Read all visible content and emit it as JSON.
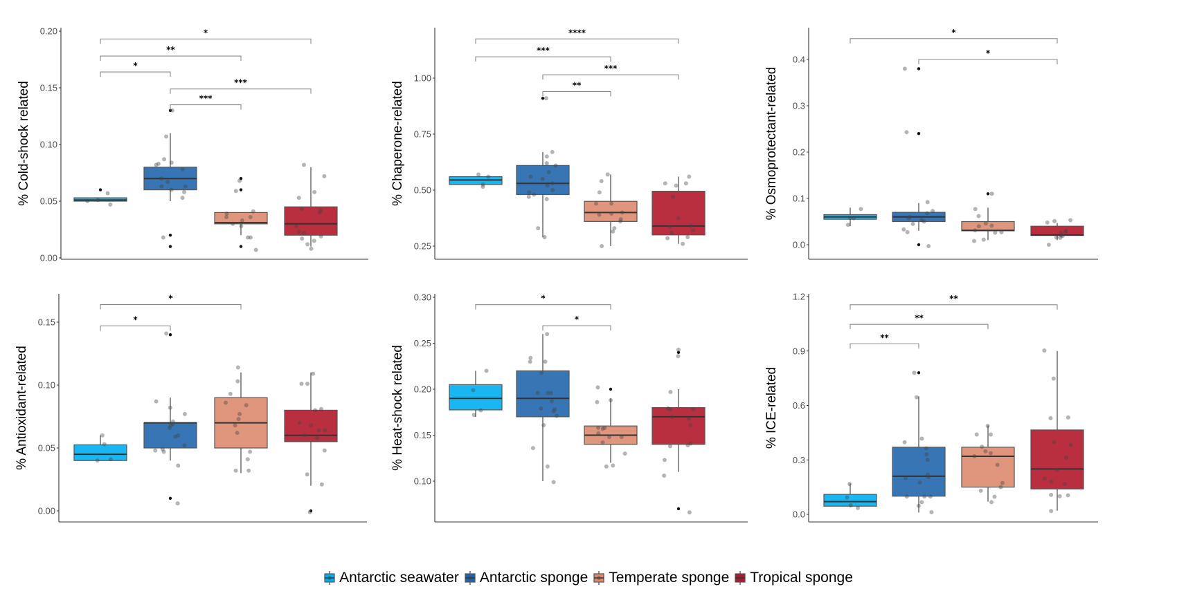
{
  "legend": {
    "items": [
      {
        "label": "Antarctic seawater",
        "color": "#00aeef"
      },
      {
        "label": "Antarctic sponge",
        "color": "#2166ac"
      },
      {
        "label": "Temperate sponge",
        "color": "#dd8a6f"
      },
      {
        "label": "Tropical sponge",
        "color": "#b2182b"
      }
    ]
  },
  "chart_data": [
    {
      "type": "box",
      "title": "",
      "ylabel": "% Cold-shock related",
      "ylim": [
        0.0,
        0.2
      ],
      "yticks": [
        0.0,
        0.05,
        0.1,
        0.15,
        0.2
      ],
      "ytick_labels": [
        "0.00",
        "0.05",
        "0.10",
        "0.15",
        "0.20"
      ],
      "categories": [
        "Antarctic seawater",
        "Antarctic sponge",
        "Temperate sponge",
        "Tropical sponge"
      ],
      "boxes": [
        {
          "q1": 0.05,
          "median": 0.051,
          "q3": 0.053,
          "whisker_low": 0.05,
          "whisker_high": 0.053,
          "points": [
            0.057,
            0.05,
            0.051,
            0.047
          ],
          "outliers": [
            0.06
          ]
        },
        {
          "q1": 0.06,
          "median": 0.07,
          "q3": 0.08,
          "whisker_low": 0.05,
          "whisker_high": 0.11,
          "points": [
            0.13,
            0.107,
            0.087,
            0.084,
            0.083,
            0.082,
            0.078,
            0.07,
            0.067,
            0.063,
            0.063,
            0.06,
            0.058,
            0.053,
            0.018
          ],
          "outliers": [
            0.13,
            0.02,
            0.01
          ]
        },
        {
          "q1": 0.03,
          "median": 0.031,
          "q3": 0.04,
          "whisker_low": 0.02,
          "whisker_high": 0.04,
          "points": [
            0.068,
            0.059,
            0.041,
            0.039,
            0.036,
            0.036,
            0.033,
            0.03,
            0.028,
            0.018,
            0.018,
            0.007
          ],
          "outliers": [
            0.07,
            0.06,
            0.01
          ]
        },
        {
          "q1": 0.02,
          "median": 0.03,
          "q3": 0.045,
          "whisker_low": 0.01,
          "whisker_high": 0.08,
          "points": [
            0.082,
            0.072,
            0.058,
            0.053,
            0.043,
            0.042,
            0.04,
            0.028,
            0.023,
            0.022,
            0.019,
            0.017,
            0.012,
            0.015,
            0.008
          ],
          "outliers": []
        }
      ],
      "comparisons": [
        {
          "from": 0,
          "to": 3,
          "label": "*",
          "y": 0.193
        },
        {
          "from": 0,
          "to": 2,
          "label": "**",
          "y": 0.178
        },
        {
          "from": 0,
          "to": 1,
          "label": "*",
          "y": 0.164
        },
        {
          "from": 1,
          "to": 3,
          "label": "***",
          "y": 0.149
        },
        {
          "from": 1,
          "to": 2,
          "label": "***",
          "y": 0.135
        }
      ]
    },
    {
      "type": "box",
      "ylabel": "% Chaperone-related",
      "ylim": [
        0.25,
        1.25
      ],
      "yticks": [
        0.25,
        0.5,
        0.75,
        1.0
      ],
      "ytick_labels": [
        "0.25",
        "0.50",
        "0.75",
        "1.00"
      ],
      "categories": [
        "Antarctic seawater",
        "Antarctic sponge",
        "Temperate sponge",
        "Tropical sponge"
      ],
      "boxes": [
        {
          "q1": 0.525,
          "median": 0.545,
          "q3": 0.56,
          "whisker_low": 0.525,
          "whisker_high": 0.56,
          "points": [
            0.57,
            0.56,
            0.525,
            0.515
          ],
          "outliers": []
        },
        {
          "q1": 0.48,
          "median": 0.53,
          "q3": 0.61,
          "whisker_low": 0.29,
          "whisker_high": 0.67,
          "points": [
            0.91,
            0.67,
            0.65,
            0.62,
            0.61,
            0.58,
            0.56,
            0.55,
            0.53,
            0.52,
            0.5,
            0.49,
            0.48,
            0.47,
            0.46,
            0.33,
            0.29
          ],
          "outliers": [
            0.91
          ]
        },
        {
          "q1": 0.36,
          "median": 0.4,
          "q3": 0.45,
          "whisker_low": 0.25,
          "whisker_high": 0.57,
          "points": [
            0.57,
            0.54,
            0.49,
            0.44,
            0.44,
            0.4,
            0.395,
            0.39,
            0.37,
            0.36,
            0.33,
            0.315,
            0.25
          ],
          "outliers": []
        },
        {
          "q1": 0.3,
          "median": 0.34,
          "q3": 0.495,
          "whisker_low": 0.26,
          "whisker_high": 0.56,
          "points": [
            0.56,
            0.53,
            0.53,
            0.52,
            0.47,
            0.375,
            0.34,
            0.335,
            0.32,
            0.31,
            0.29,
            0.285,
            0.26
          ],
          "outliers": []
        }
      ],
      "comparisons": [
        {
          "from": 0,
          "to": 3,
          "label": "****",
          "y": 1.175
        },
        {
          "from": 0,
          "to": 2,
          "label": "***",
          "y": 1.095
        },
        {
          "from": 1,
          "to": 3,
          "label": "***",
          "y": 1.015
        },
        {
          "from": 1,
          "to": 2,
          "label": "**",
          "y": 0.94
        }
      ]
    },
    {
      "type": "box",
      "ylabel": "% Osmoprotectant-related",
      "ylim": [
        0.0,
        0.46
      ],
      "yticks": [
        0.0,
        0.1,
        0.2,
        0.3,
        0.4
      ],
      "ytick_labels": [
        "0.0",
        "0.1",
        "0.2",
        "0.3",
        "0.4"
      ],
      "categories": [
        "Antarctic seawater",
        "Antarctic sponge",
        "Temperate sponge",
        "Tropical sponge"
      ],
      "boxes": [
        {
          "q1": 0.055,
          "median": 0.06,
          "q3": 0.065,
          "whisker_low": 0.04,
          "whisker_high": 0.08,
          "points": [
            0.077,
            0.058,
            0.057,
            0.043
          ],
          "outliers": []
        },
        {
          "q1": 0.05,
          "median": 0.06,
          "q3": 0.07,
          "whisker_low": 0.03,
          "whisker_high": 0.09,
          "points": [
            0.38,
            0.243,
            0.092,
            0.073,
            0.068,
            0.06,
            0.057,
            0.053,
            0.05,
            0.045,
            0.033,
            0.027,
            -0.003
          ],
          "outliers": [
            0.38,
            0.24,
            0.0
          ]
        },
        {
          "q1": 0.03,
          "median": 0.031,
          "q3": 0.05,
          "whisker_low": 0.01,
          "whisker_high": 0.08,
          "points": [
            0.11,
            0.077,
            0.062,
            0.046,
            0.041,
            0.04,
            0.031,
            0.027,
            0.026,
            0.011,
            0.008
          ],
          "outliers": [
            0.11
          ]
        },
        {
          "q1": 0.02,
          "median": 0.021,
          "q3": 0.04,
          "whisker_low": 0.01,
          "whisker_high": 0.047,
          "points": [
            0.053,
            0.051,
            0.048,
            0.03,
            0.028,
            0.026,
            0.02,
            0.019,
            0.016,
            0.015,
            0.0
          ],
          "outliers": []
        }
      ],
      "comparisons": [
        {
          "from": 0,
          "to": 3,
          "label": "*",
          "y": 0.445
        },
        {
          "from": 1,
          "to": 3,
          "label": "*",
          "y": 0.4
        }
      ]
    },
    {
      "type": "box",
      "ylabel": "% Antioxidant-related",
      "ylim": [
        -0.01,
        0.17
      ],
      "yticks": [
        0.0,
        0.05,
        0.1,
        0.15
      ],
      "ytick_labels": [
        "0.00",
        "0.05",
        "0.10",
        "0.15"
      ],
      "categories": [
        "Antarctic seawater",
        "Antarctic sponge",
        "Temperate sponge",
        "Tropical sponge"
      ],
      "boxes": [
        {
          "q1": 0.04,
          "median": 0.045,
          "q3": 0.0525,
          "whisker_low": 0.04,
          "whisker_high": 0.06,
          "points": [
            0.06,
            0.053,
            0.041,
            0.04
          ],
          "outliers": []
        },
        {
          "q1": 0.05,
          "median": 0.07,
          "q3": 0.07,
          "whisker_low": 0.04,
          "whisker_high": 0.09,
          "points": [
            0.141,
            0.087,
            0.082,
            0.077,
            0.071,
            0.069,
            0.068,
            0.066,
            0.06,
            0.059,
            0.052,
            0.049,
            0.048,
            0.047,
            0.036,
            0.006
          ],
          "outliers": [
            0.14,
            0.01
          ]
        },
        {
          "q1": 0.05,
          "median": 0.07,
          "q3": 0.09,
          "whisker_low": 0.03,
          "whisker_high": 0.11,
          "points": [
            0.114,
            0.103,
            0.093,
            0.086,
            0.084,
            0.077,
            0.073,
            0.068,
            0.062,
            0.047,
            0.041,
            0.032,
            0.032
          ],
          "outliers": []
        },
        {
          "q1": 0.055,
          "median": 0.06,
          "q3": 0.08,
          "whisker_low": 0.02,
          "whisker_high": 0.11,
          "points": [
            0.109,
            0.101,
            0.101,
            0.081,
            0.08,
            0.07,
            0.068,
            0.064,
            0.064,
            0.06,
            0.058,
            0.048,
            0.029,
            0.021,
            -0.001
          ],
          "outliers": [
            0.0
          ]
        }
      ],
      "comparisons": [
        {
          "from": 0,
          "to": 2,
          "label": "*",
          "y": 0.164
        },
        {
          "from": 0,
          "to": 1,
          "label": "*",
          "y": 0.147
        }
      ]
    },
    {
      "type": "box",
      "ylabel": "% Heat-shock related",
      "ylim": [
        0.055,
        0.3
      ],
      "yticks": [
        0.1,
        0.15,
        0.2,
        0.25,
        0.3
      ],
      "ytick_labels": [
        "0.10",
        "0.15",
        "0.20",
        "0.25",
        "0.30"
      ],
      "categories": [
        "Antarctic seawater",
        "Antarctic sponge",
        "Temperate sponge",
        "Tropical sponge"
      ],
      "boxes": [
        {
          "q1": 0.1775,
          "median": 0.19,
          "q3": 0.205,
          "whisker_low": 0.17,
          "whisker_high": 0.22,
          "points": [
            0.22,
            0.199,
            0.177,
            0.172
          ],
          "outliers": []
        },
        {
          "q1": 0.17,
          "median": 0.19,
          "q3": 0.22,
          "whisker_low": 0.1,
          "whisker_high": 0.26,
          "points": [
            0.26,
            0.234,
            0.23,
            0.23,
            0.218,
            0.196,
            0.196,
            0.196,
            0.187,
            0.179,
            0.178,
            0.176,
            0.171,
            0.161,
            0.136,
            0.116,
            0.099
          ],
          "outliers": []
        },
        {
          "q1": 0.14,
          "median": 0.15,
          "q3": 0.16,
          "whisker_low": 0.12,
          "whisker_high": 0.19,
          "points": [
            0.202,
            0.188,
            0.186,
            0.158,
            0.158,
            0.157,
            0.152,
            0.148,
            0.148,
            0.142,
            0.13,
            0.117,
            0.116
          ],
          "outliers": [
            0.2
          ]
        },
        {
          "q1": 0.14,
          "median": 0.17,
          "q3": 0.18,
          "whisker_low": 0.11,
          "whisker_high": 0.2,
          "points": [
            0.243,
            0.236,
            0.197,
            0.179,
            0.178,
            0.178,
            0.17,
            0.168,
            0.161,
            0.141,
            0.139,
            0.138,
            0.123,
            0.106,
            0.066
          ],
          "outliers": [
            0.24,
            0.07
          ]
        }
      ],
      "comparisons": [
        {
          "from": 0,
          "to": 2,
          "label": "*",
          "y": 0.292
        },
        {
          "from": 1,
          "to": 2,
          "label": "*",
          "y": 0.269
        }
      ]
    },
    {
      "type": "box",
      "ylabel": "% ICE-related",
      "ylim": [
        -0.05,
        1.2
      ],
      "yticks": [
        0.0,
        0.3,
        0.6,
        0.9,
        1.2
      ],
      "ytick_labels": [
        "0.0",
        "0.3",
        "0.6",
        "0.9",
        "1.2"
      ],
      "categories": [
        "Antarctic seawater",
        "Antarctic sponge",
        "Temperate sponge",
        "Tropical sponge"
      ],
      "boxes": [
        {
          "q1": 0.045,
          "median": 0.07,
          "q3": 0.11,
          "whisker_low": 0.04,
          "whisker_high": 0.17,
          "points": [
            0.167,
            0.093,
            0.05,
            0.035
          ],
          "outliers": []
        },
        {
          "q1": 0.1,
          "median": 0.21,
          "q3": 0.37,
          "whisker_low": 0.01,
          "whisker_high": 0.65,
          "points": [
            0.78,
            0.645,
            0.417,
            0.397,
            0.364,
            0.33,
            0.3,
            0.218,
            0.205,
            0.2,
            0.175,
            0.098,
            0.098,
            0.098,
            0.067,
            0.047,
            0.012
          ],
          "outliers": [
            0.78
          ]
        },
        {
          "q1": 0.15,
          "median": 0.32,
          "q3": 0.37,
          "whisker_low": 0.07,
          "whisker_high": 0.49,
          "points": [
            0.487,
            0.44,
            0.44,
            0.373,
            0.347,
            0.337,
            0.32,
            0.273,
            0.173,
            0.15,
            0.13,
            0.097,
            0.067
          ],
          "outliers": []
        },
        {
          "q1": 0.14,
          "median": 0.25,
          "q3": 0.465,
          "whisker_low": 0.02,
          "whisker_high": 0.9,
          "points": [
            0.903,
            0.748,
            0.534,
            0.53,
            0.398,
            0.383,
            0.313,
            0.245,
            0.197,
            0.18,
            0.167,
            0.107,
            0.105,
            0.1,
            0.018
          ],
          "outliers": []
        }
      ],
      "comparisons": [
        {
          "from": 0,
          "to": 3,
          "label": "**",
          "y": 1.155
        },
        {
          "from": 0,
          "to": 2,
          "label": "**",
          "y": 1.047
        },
        {
          "from": 0,
          "to": 1,
          "label": "**",
          "y": 0.94
        }
      ]
    }
  ]
}
